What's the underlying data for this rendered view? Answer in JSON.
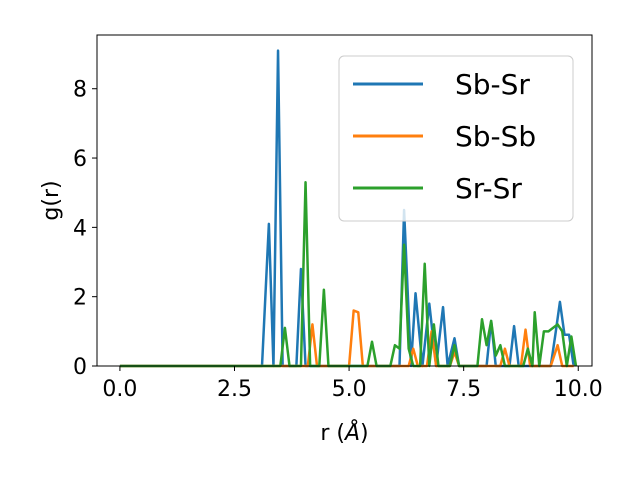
{
  "chart_data": {
    "type": "line",
    "xlabel_prefix": "r (",
    "xlabel_unit": "Å",
    "xlabel_suffix": ")",
    "ylabel": "g(r)",
    "xlim": [
      -0.5,
      10.3
    ],
    "ylim": [
      0,
      9.55
    ],
    "xticks": [
      0.0,
      2.5,
      5.0,
      7.5,
      10.0
    ],
    "xtick_labels": [
      "0.0",
      "2.5",
      "5.0",
      "7.5",
      "10.0"
    ],
    "yticks": [
      0,
      2,
      4,
      6,
      8
    ],
    "ytick_labels": [
      "0",
      "2",
      "4",
      "6",
      "8"
    ],
    "grid": false,
    "legend_position": "top-right",
    "series": [
      {
        "name": "Sb-Sr",
        "color": "#1f77b4",
        "points": [
          [
            0,
            0
          ],
          [
            3.1,
            0
          ],
          [
            3.25,
            4.1
          ],
          [
            3.35,
            0
          ],
          [
            3.45,
            9.1
          ],
          [
            3.55,
            0
          ],
          [
            3.85,
            0
          ],
          [
            3.95,
            2.8
          ],
          [
            4.05,
            0
          ],
          [
            6.1,
            0
          ],
          [
            6.2,
            4.5
          ],
          [
            6.35,
            0
          ],
          [
            6.45,
            2.1
          ],
          [
            6.6,
            0
          ],
          [
            6.75,
            1.8
          ],
          [
            6.9,
            0
          ],
          [
            7.05,
            1.7
          ],
          [
            7.15,
            0
          ],
          [
            7.3,
            0.8
          ],
          [
            7.4,
            0
          ],
          [
            8.0,
            0
          ],
          [
            8.1,
            1.3
          ],
          [
            8.2,
            0
          ],
          [
            8.5,
            0
          ],
          [
            8.6,
            1.15
          ],
          [
            8.7,
            0
          ],
          [
            9.4,
            0
          ],
          [
            9.5,
            0.9
          ],
          [
            9.6,
            1.85
          ],
          [
            9.7,
            0.9
          ],
          [
            9.8,
            0.9
          ],
          [
            9.9,
            0
          ]
        ]
      },
      {
        "name": "Sb-Sb",
        "color": "#ff7f0e",
        "points": [
          [
            0,
            0
          ],
          [
            4.1,
            0
          ],
          [
            4.2,
            1.2
          ],
          [
            4.3,
            0
          ],
          [
            5.0,
            0
          ],
          [
            5.1,
            1.6
          ],
          [
            5.2,
            1.55
          ],
          [
            5.3,
            0
          ],
          [
            6.3,
            0
          ],
          [
            6.4,
            0.5
          ],
          [
            6.5,
            0
          ],
          [
            6.7,
            0
          ],
          [
            6.8,
            1.0
          ],
          [
            6.9,
            0
          ],
          [
            7.2,
            0
          ],
          [
            7.3,
            0.4
          ],
          [
            7.4,
            0
          ],
          [
            8.3,
            0
          ],
          [
            8.4,
            0.5
          ],
          [
            8.5,
            0
          ],
          [
            8.75,
            0
          ],
          [
            8.85,
            1.05
          ],
          [
            8.95,
            0
          ],
          [
            9.4,
            0
          ],
          [
            9.55,
            0.6
          ],
          [
            9.65,
            0
          ],
          [
            9.9,
            0
          ]
        ]
      },
      {
        "name": "Sr-Sr",
        "color": "#2ca02c",
        "points": [
          [
            0,
            0
          ],
          [
            3.5,
            0
          ],
          [
            3.6,
            1.1
          ],
          [
            3.7,
            0
          ],
          [
            3.95,
            0
          ],
          [
            4.05,
            5.3
          ],
          [
            4.15,
            0
          ],
          [
            4.35,
            0
          ],
          [
            4.45,
            2.2
          ],
          [
            4.55,
            0
          ],
          [
            5.4,
            0
          ],
          [
            5.5,
            0.7
          ],
          [
            5.6,
            0
          ],
          [
            5.9,
            0
          ],
          [
            6.0,
            0.6
          ],
          [
            6.1,
            0.5
          ],
          [
            6.2,
            3.5
          ],
          [
            6.3,
            0.5
          ],
          [
            6.4,
            0
          ],
          [
            6.55,
            0
          ],
          [
            6.65,
            2.95
          ],
          [
            6.75,
            0
          ],
          [
            6.85,
            1.2
          ],
          [
            6.95,
            0
          ],
          [
            7.2,
            0
          ],
          [
            7.3,
            0.6
          ],
          [
            7.4,
            0
          ],
          [
            7.8,
            0
          ],
          [
            7.9,
            1.35
          ],
          [
            8.0,
            0.6
          ],
          [
            8.1,
            1.3
          ],
          [
            8.2,
            0.3
          ],
          [
            8.3,
            0.6
          ],
          [
            8.4,
            0
          ],
          [
            8.8,
            0
          ],
          [
            8.9,
            0.5
          ],
          [
            9.0,
            0
          ],
          [
            9.05,
            1.55
          ],
          [
            9.15,
            0
          ],
          [
            9.25,
            1.0
          ],
          [
            9.35,
            1.0
          ],
          [
            9.45,
            1.1
          ],
          [
            9.55,
            1.2
          ],
          [
            9.65,
            1.0
          ],
          [
            9.75,
            0
          ],
          [
            9.85,
            0.85
          ],
          [
            9.95,
            0
          ]
        ]
      }
    ]
  }
}
